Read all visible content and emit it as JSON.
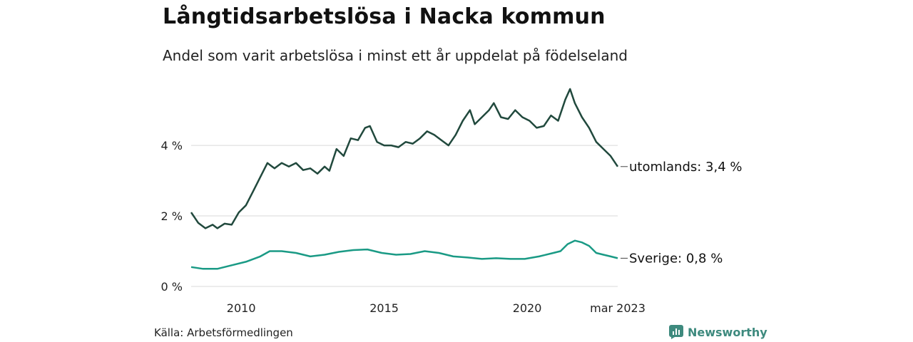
{
  "title": "Långtidsarbetslösa i Nacka kommun",
  "subtitle": "Andel som varit arbetslösa i minst ett år uppdelat på födelseland",
  "source": "Källa: Arbetsförmedlingen",
  "brand": "Newsworthy",
  "colors": {
    "utomlands": "#21493d",
    "sverige": "#1a9a85",
    "grid": "#d9d9d9",
    "brand": "#3e8a7e"
  },
  "chart_data": {
    "type": "line",
    "x_start": "2008-04",
    "x_end": "2023-03",
    "ylim": [
      0,
      5.7
    ],
    "yticks": [
      {
        "value": 0,
        "label": "0 %"
      },
      {
        "value": 2,
        "label": "2 %"
      },
      {
        "value": 4,
        "label": "4 %"
      }
    ],
    "xticks": [
      {
        "date": "2010-01",
        "label": "2010"
      },
      {
        "date": "2015-01",
        "label": "2015"
      },
      {
        "date": "2020-01",
        "label": "2020"
      },
      {
        "date": "2023-03",
        "label": "mar 2023"
      }
    ],
    "series": [
      {
        "key": "utomlands",
        "label": "utomlands: 3,4 %",
        "points": [
          [
            "2008-04",
            2.1
          ],
          [
            "2008-07",
            1.8
          ],
          [
            "2008-10",
            1.65
          ],
          [
            "2009-01",
            1.75
          ],
          [
            "2009-03",
            1.65
          ],
          [
            "2009-06",
            1.78
          ],
          [
            "2009-09",
            1.75
          ],
          [
            "2009-12",
            2.1
          ],
          [
            "2010-03",
            2.3
          ],
          [
            "2010-06",
            2.7
          ],
          [
            "2010-09",
            3.1
          ],
          [
            "2010-12",
            3.5
          ],
          [
            "2011-03",
            3.35
          ],
          [
            "2011-06",
            3.5
          ],
          [
            "2011-09",
            3.4
          ],
          [
            "2011-12",
            3.5
          ],
          [
            "2012-03",
            3.3
          ],
          [
            "2012-06",
            3.35
          ],
          [
            "2012-09",
            3.2
          ],
          [
            "2012-12",
            3.4
          ],
          [
            "2013-02",
            3.28
          ],
          [
            "2013-05",
            3.9
          ],
          [
            "2013-08",
            3.7
          ],
          [
            "2013-11",
            4.2
          ],
          [
            "2014-02",
            4.15
          ],
          [
            "2014-05",
            4.5
          ],
          [
            "2014-07",
            4.55
          ],
          [
            "2014-10",
            4.1
          ],
          [
            "2015-01",
            4.0
          ],
          [
            "2015-04",
            4.0
          ],
          [
            "2015-07",
            3.95
          ],
          [
            "2015-10",
            4.1
          ],
          [
            "2016-01",
            4.05
          ],
          [
            "2016-04",
            4.2
          ],
          [
            "2016-07",
            4.4
          ],
          [
            "2016-10",
            4.3
          ],
          [
            "2017-01",
            4.15
          ],
          [
            "2017-04",
            4.0
          ],
          [
            "2017-07",
            4.3
          ],
          [
            "2017-10",
            4.7
          ],
          [
            "2018-01",
            5.0
          ],
          [
            "2018-03",
            4.6
          ],
          [
            "2018-06",
            4.8
          ],
          [
            "2018-09",
            5.0
          ],
          [
            "2018-11",
            5.2
          ],
          [
            "2019-02",
            4.8
          ],
          [
            "2019-05",
            4.75
          ],
          [
            "2019-08",
            5.0
          ],
          [
            "2019-11",
            4.8
          ],
          [
            "2020-02",
            4.7
          ],
          [
            "2020-05",
            4.5
          ],
          [
            "2020-08",
            4.55
          ],
          [
            "2020-11",
            4.85
          ],
          [
            "2021-02",
            4.7
          ],
          [
            "2021-05",
            5.3
          ],
          [
            "2021-07",
            5.6
          ],
          [
            "2021-09",
            5.2
          ],
          [
            "2021-12",
            4.8
          ],
          [
            "2022-03",
            4.5
          ],
          [
            "2022-06",
            4.1
          ],
          [
            "2022-09",
            3.9
          ],
          [
            "2022-12",
            3.7
          ],
          [
            "2023-03",
            3.4
          ]
        ]
      },
      {
        "key": "sverige",
        "label": "Sverige: 0,8 %",
        "points": [
          [
            "2008-04",
            0.55
          ],
          [
            "2008-09",
            0.5
          ],
          [
            "2009-03",
            0.5
          ],
          [
            "2009-09",
            0.6
          ],
          [
            "2010-03",
            0.7
          ],
          [
            "2010-09",
            0.85
          ],
          [
            "2011-01",
            1.0
          ],
          [
            "2011-06",
            1.0
          ],
          [
            "2011-12",
            0.95
          ],
          [
            "2012-06",
            0.85
          ],
          [
            "2012-12",
            0.9
          ],
          [
            "2013-06",
            0.98
          ],
          [
            "2013-12",
            1.03
          ],
          [
            "2014-06",
            1.05
          ],
          [
            "2014-12",
            0.95
          ],
          [
            "2015-06",
            0.9
          ],
          [
            "2015-12",
            0.92
          ],
          [
            "2016-06",
            1.0
          ],
          [
            "2016-12",
            0.95
          ],
          [
            "2017-06",
            0.85
          ],
          [
            "2017-12",
            0.82
          ],
          [
            "2018-06",
            0.78
          ],
          [
            "2018-12",
            0.8
          ],
          [
            "2019-06",
            0.78
          ],
          [
            "2019-12",
            0.78
          ],
          [
            "2020-06",
            0.85
          ],
          [
            "2020-12",
            0.95
          ],
          [
            "2021-03",
            1.0
          ],
          [
            "2021-06",
            1.2
          ],
          [
            "2021-09",
            1.3
          ],
          [
            "2021-12",
            1.25
          ],
          [
            "2022-03",
            1.15
          ],
          [
            "2022-06",
            0.95
          ],
          [
            "2022-09",
            0.9
          ],
          [
            "2022-12",
            0.85
          ],
          [
            "2023-03",
            0.8
          ]
        ]
      }
    ]
  }
}
